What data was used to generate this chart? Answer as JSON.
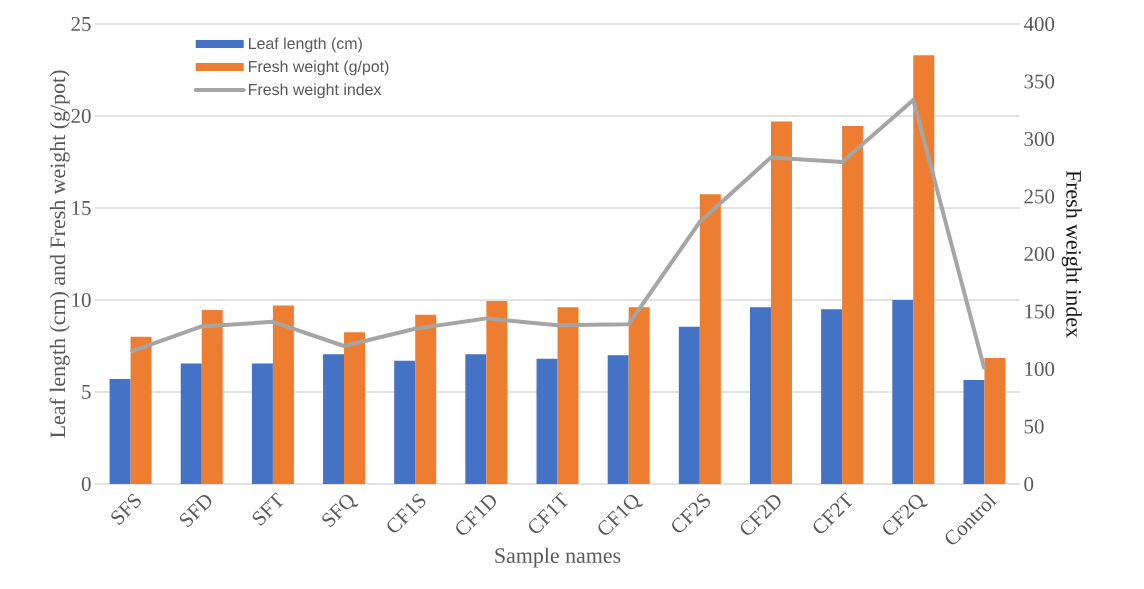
{
  "chart_data": {
    "type": "bar",
    "xlabel": "Sample names",
    "ylabel": "Leaf length (cm) and Fresh weight  (g/pot)",
    "y2label": "Fresh weight index",
    "categories": [
      "SFS",
      "SFD",
      "SFT",
      "SFQ",
      "CF1S",
      "CF1D",
      "CF1T",
      "CF1Q",
      "CF2S",
      "CF2D",
      "CF2T",
      "CF2Q",
      "Control"
    ],
    "series": [
      {
        "name": "Leaf length (cm)",
        "color": "#4472c4",
        "values": [
          5.7,
          6.55,
          6.55,
          7.05,
          6.7,
          7.05,
          6.8,
          7.0,
          8.55,
          9.6,
          9.5,
          10.0,
          5.65
        ]
      },
      {
        "name": "Fresh weight (g/pot)",
        "color": "#ed7d31",
        "values": [
          8.0,
          9.45,
          9.7,
          8.25,
          9.2,
          9.95,
          9.6,
          9.6,
          15.75,
          19.7,
          19.45,
          23.3,
          6.85
        ]
      },
      {
        "name": "Fresh weight index",
        "color": "#a5a5a5",
        "type": "line",
        "axis": "y2",
        "values": [
          115,
          137,
          141,
          120,
          135,
          144,
          138,
          139,
          228,
          284,
          280,
          334,
          100
        ]
      }
    ],
    "ylim": [
      0,
      25
    ],
    "yticks": [
      0,
      5,
      10,
      15,
      20,
      25
    ],
    "y2lim": [
      0,
      400
    ],
    "y2ticks": [
      0,
      50,
      100,
      150,
      200,
      250,
      300,
      350,
      400
    ],
    "grid": "y",
    "legend": "top left"
  }
}
